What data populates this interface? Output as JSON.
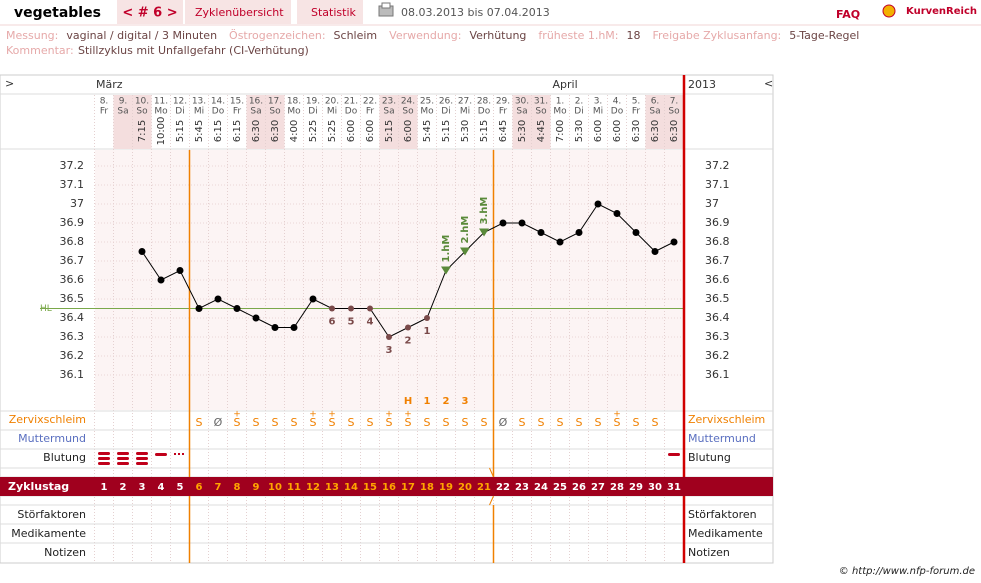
{
  "header": {
    "title": "vegetables",
    "cycle_nav": "< # 6 >",
    "tabs": [
      "Zyklenübersicht",
      "Statistik"
    ],
    "range": "08.03.2013 bis 07.04.2013",
    "faq": "FAQ",
    "brand": "KurvenReich"
  },
  "info": {
    "row1": [
      [
        "Messung:",
        "vaginal / digital / 3 Minuten"
      ],
      [
        "Östrogenzeichen:",
        "Schleim"
      ],
      [
        "Verwendung:",
        "Verhütung"
      ],
      [
        "früheste 1.hM:",
        "18"
      ],
      [
        "Freigabe Zyklusanfang:",
        "5-Tage-Regel"
      ]
    ],
    "comment_label": "Kommentar:",
    "comment": "Stillzyklus mit Unfallgefahr (CI-Verhütung)"
  },
  "chart_data": {
    "type": "line",
    "nav_left": ">",
    "nav_right": "<",
    "year": "2013",
    "months": [
      "März",
      "April"
    ],
    "categories": [
      "8.",
      "9.",
      "10.",
      "11.",
      "12.",
      "13.",
      "14.",
      "15.",
      "16.",
      "17.",
      "18.",
      "19.",
      "20.",
      "21.",
      "22.",
      "23.",
      "24.",
      "25.",
      "26.",
      "27.",
      "28.",
      "29.",
      "30.",
      "31.",
      "1.",
      "2.",
      "3.",
      "4.",
      "5.",
      "6.",
      "7."
    ],
    "weekdays": [
      "Fr",
      "Sa",
      "So",
      "Mo",
      "Di",
      "Mi",
      "Do",
      "Fr",
      "Sa",
      "So",
      "Mo",
      "Di",
      "Mi",
      "Do",
      "Fr",
      "Sa",
      "So",
      "Mo",
      "Di",
      "Mi",
      "Do",
      "Fr",
      "Sa",
      "So",
      "Mo",
      "Di",
      "Mi",
      "Do",
      "Fr",
      "Sa",
      "So"
    ],
    "times": [
      null,
      null,
      "7:15",
      "10:00",
      "5:15",
      "5:45",
      "6:15",
      "6:15",
      "6:30",
      "6:30",
      "4:00",
      "5:25",
      "5:25",
      "6:00",
      "6:00",
      "5:15",
      "6:00",
      "5:45",
      "5:15",
      "5:30",
      "5:15",
      "6:45",
      "5:30",
      "4:45",
      "7:00",
      "5:30",
      "6:00",
      "6:00",
      "6:30",
      "6:30",
      "6:30"
    ],
    "series": [
      {
        "name": "Temperatur",
        "color": "#000000",
        "values": [
          null,
          null,
          36.75,
          36.6,
          36.65,
          36.45,
          36.5,
          36.45,
          36.4,
          36.35,
          36.35,
          36.5,
          36.45,
          36.45,
          36.45,
          36.3,
          36.35,
          36.4,
          36.65,
          36.75,
          36.85,
          36.9,
          36.9,
          36.85,
          36.8,
          36.85,
          37.0,
          36.95,
          36.85,
          36.75,
          36.8
        ]
      }
    ],
    "ylim": [
      35.9,
      37.3
    ],
    "yticks": [
      37.2,
      37.1,
      37,
      36.9,
      36.8,
      36.7,
      36.6,
      36.5,
      36.4,
      36.3,
      36.2,
      36.1
    ],
    "coverline": 36.45,
    "coverline_label": "HL",
    "count_labels": [
      null,
      null,
      null,
      null,
      null,
      null,
      null,
      null,
      null,
      null,
      null,
      null,
      "6",
      "5",
      "4",
      "3",
      "2",
      "1",
      null,
      null,
      null,
      null,
      null,
      null,
      null,
      null,
      null,
      null,
      null,
      null,
      null
    ],
    "hm_labels": [
      null,
      null,
      null,
      null,
      null,
      null,
      null,
      null,
      null,
      null,
      null,
      null,
      null,
      null,
      null,
      null,
      null,
      null,
      "1.hM",
      "2.hM",
      "3.hM",
      null,
      null,
      null,
      null,
      null,
      null,
      null,
      null,
      null,
      null
    ],
    "peak_labels": [
      null,
      null,
      null,
      null,
      null,
      null,
      null,
      null,
      null,
      null,
      null,
      null,
      null,
      null,
      null,
      null,
      "H",
      "1",
      "2",
      "3",
      null,
      null,
      null,
      null,
      null,
      null,
      null,
      null,
      null,
      null,
      null
    ],
    "cervix": [
      null,
      null,
      null,
      null,
      null,
      "S",
      "Ø",
      "S",
      "S",
      "S",
      "S",
      "S",
      "S",
      "S",
      "S",
      "S",
      "S",
      "S",
      "S",
      "S",
      "S",
      "Ø",
      "S",
      "S",
      "S",
      "S",
      "S",
      "S",
      "S",
      "S",
      null
    ],
    "cervix_plus": [
      null,
      null,
      null,
      null,
      null,
      null,
      null,
      "+",
      null,
      null,
      null,
      "+",
      "+",
      null,
      null,
      "+",
      "+",
      null,
      null,
      null,
      null,
      null,
      null,
      null,
      null,
      null,
      null,
      "+",
      null,
      null,
      null
    ],
    "cycle_days": [
      1,
      2,
      3,
      4,
      5,
      6,
      7,
      8,
      9,
      10,
      11,
      12,
      13,
      14,
      15,
      16,
      17,
      18,
      19,
      20,
      21,
      22,
      23,
      24,
      25,
      26,
      27,
      28,
      29,
      30,
      31
    ],
    "row_labels": {
      "cervix": "Zervixschleim",
      "os": "Muttermund",
      "bleeding": "Blutung",
      "cycle": "Zyklustag",
      "disturb": "Störfaktoren",
      "meds": "Medikamente",
      "notes": "Notizen"
    }
  },
  "footer": "© http://www.nfp-forum.de"
}
